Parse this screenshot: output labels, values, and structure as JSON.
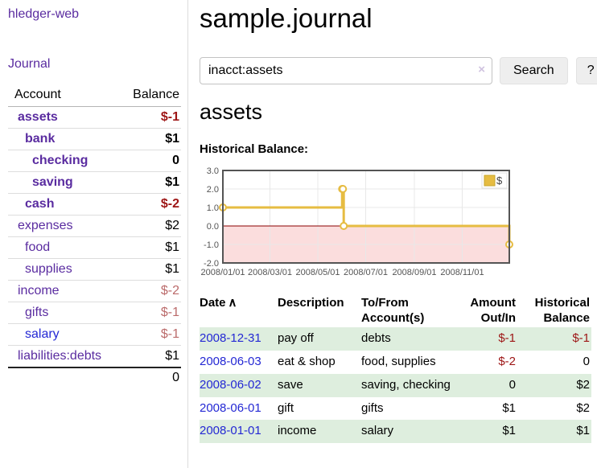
{
  "app": {
    "brand": "hledger-web"
  },
  "sidebar": {
    "journal_link": "Journal",
    "header": {
      "account": "Account",
      "balance": "Balance"
    },
    "accounts": [
      {
        "name": "assets",
        "balance": "$-1",
        "level": 1,
        "bold": true
      },
      {
        "name": "bank",
        "balance": "$1",
        "level": 2,
        "bold": true
      },
      {
        "name": "checking",
        "balance": "0",
        "level": 3,
        "bold": true
      },
      {
        "name": "saving",
        "balance": "$1",
        "level": 3,
        "bold": true
      },
      {
        "name": "cash",
        "balance": "$-2",
        "level": 2,
        "bold": true
      },
      {
        "name": "expenses",
        "balance": "$2",
        "level": 1,
        "bold": false
      },
      {
        "name": "food",
        "balance": "$1",
        "level": 2,
        "bold": false
      },
      {
        "name": "supplies",
        "balance": "$1",
        "level": 2,
        "bold": false
      },
      {
        "name": "income",
        "balance": "$-2",
        "level": 1,
        "bold": false
      },
      {
        "name": "gifts",
        "balance": "$-1",
        "level": 2,
        "bold": false
      },
      {
        "name": "salary",
        "balance": "$-1",
        "level": 2,
        "bold": false,
        "link_style": "blue"
      },
      {
        "name": "liabilities:debts",
        "balance": "$1",
        "level": 1,
        "bold": false
      }
    ],
    "total": "0"
  },
  "main": {
    "title": "sample.journal",
    "search": {
      "value": "inacct:assets",
      "clear_label": "×",
      "button_label": "Search",
      "help_label": "?"
    },
    "account_heading": "assets",
    "chart_title": "Historical Balance:"
  },
  "chart_data": {
    "type": "line",
    "step": true,
    "title": "Historical Balance",
    "series": [
      {
        "name": "$",
        "color": "#e6bc42",
        "points": [
          [
            "2008-01-01",
            1
          ],
          [
            "2008-06-01",
            2
          ],
          [
            "2008-06-02",
            2
          ],
          [
            "2008-06-03",
            0
          ],
          [
            "2008-12-31",
            -1
          ]
        ]
      }
    ],
    "x_range": [
      "2008-01-01",
      "2008-12-31"
    ],
    "x_ticks": [
      "2008/01/01",
      "2008/03/01",
      "2008/05/01",
      "2008/07/01",
      "2008/09/01",
      "2008/11/01"
    ],
    "y_ticks": [
      3.0,
      2.0,
      1.0,
      0.0,
      -1.0,
      -2.0
    ],
    "ylim": [
      -2,
      3
    ],
    "legend": {
      "label": "$",
      "position": "top-right"
    },
    "grid": true,
    "negative_region_color": "#fbdddd",
    "zero_line_color": "#8b0000",
    "border_color": "#545454",
    "gridline_color": "#e8e8e8",
    "tick_color": "#545454"
  },
  "register": {
    "headers": [
      "Date",
      "Description",
      "To/From Account(s)",
      "Amount Out/In",
      "Historical Balance"
    ],
    "sort_indicator": "∧",
    "rows": [
      {
        "date": "2008-12-31",
        "description": "pay off",
        "accounts": "debts",
        "amount": "$-1",
        "balance": "$-1"
      },
      {
        "date": "2008-06-03",
        "description": "eat & shop",
        "accounts": "food, supplies",
        "amount": "$-2",
        "balance": "0"
      },
      {
        "date": "2008-06-02",
        "description": "save",
        "accounts": "saving, checking",
        "amount": "0",
        "balance": "$2"
      },
      {
        "date": "2008-06-01",
        "description": "gift",
        "accounts": "gifts",
        "amount": "$1",
        "balance": "$2"
      },
      {
        "date": "2008-01-01",
        "description": "income",
        "accounts": "salary",
        "amount": "$1",
        "balance": "$1"
      }
    ]
  }
}
